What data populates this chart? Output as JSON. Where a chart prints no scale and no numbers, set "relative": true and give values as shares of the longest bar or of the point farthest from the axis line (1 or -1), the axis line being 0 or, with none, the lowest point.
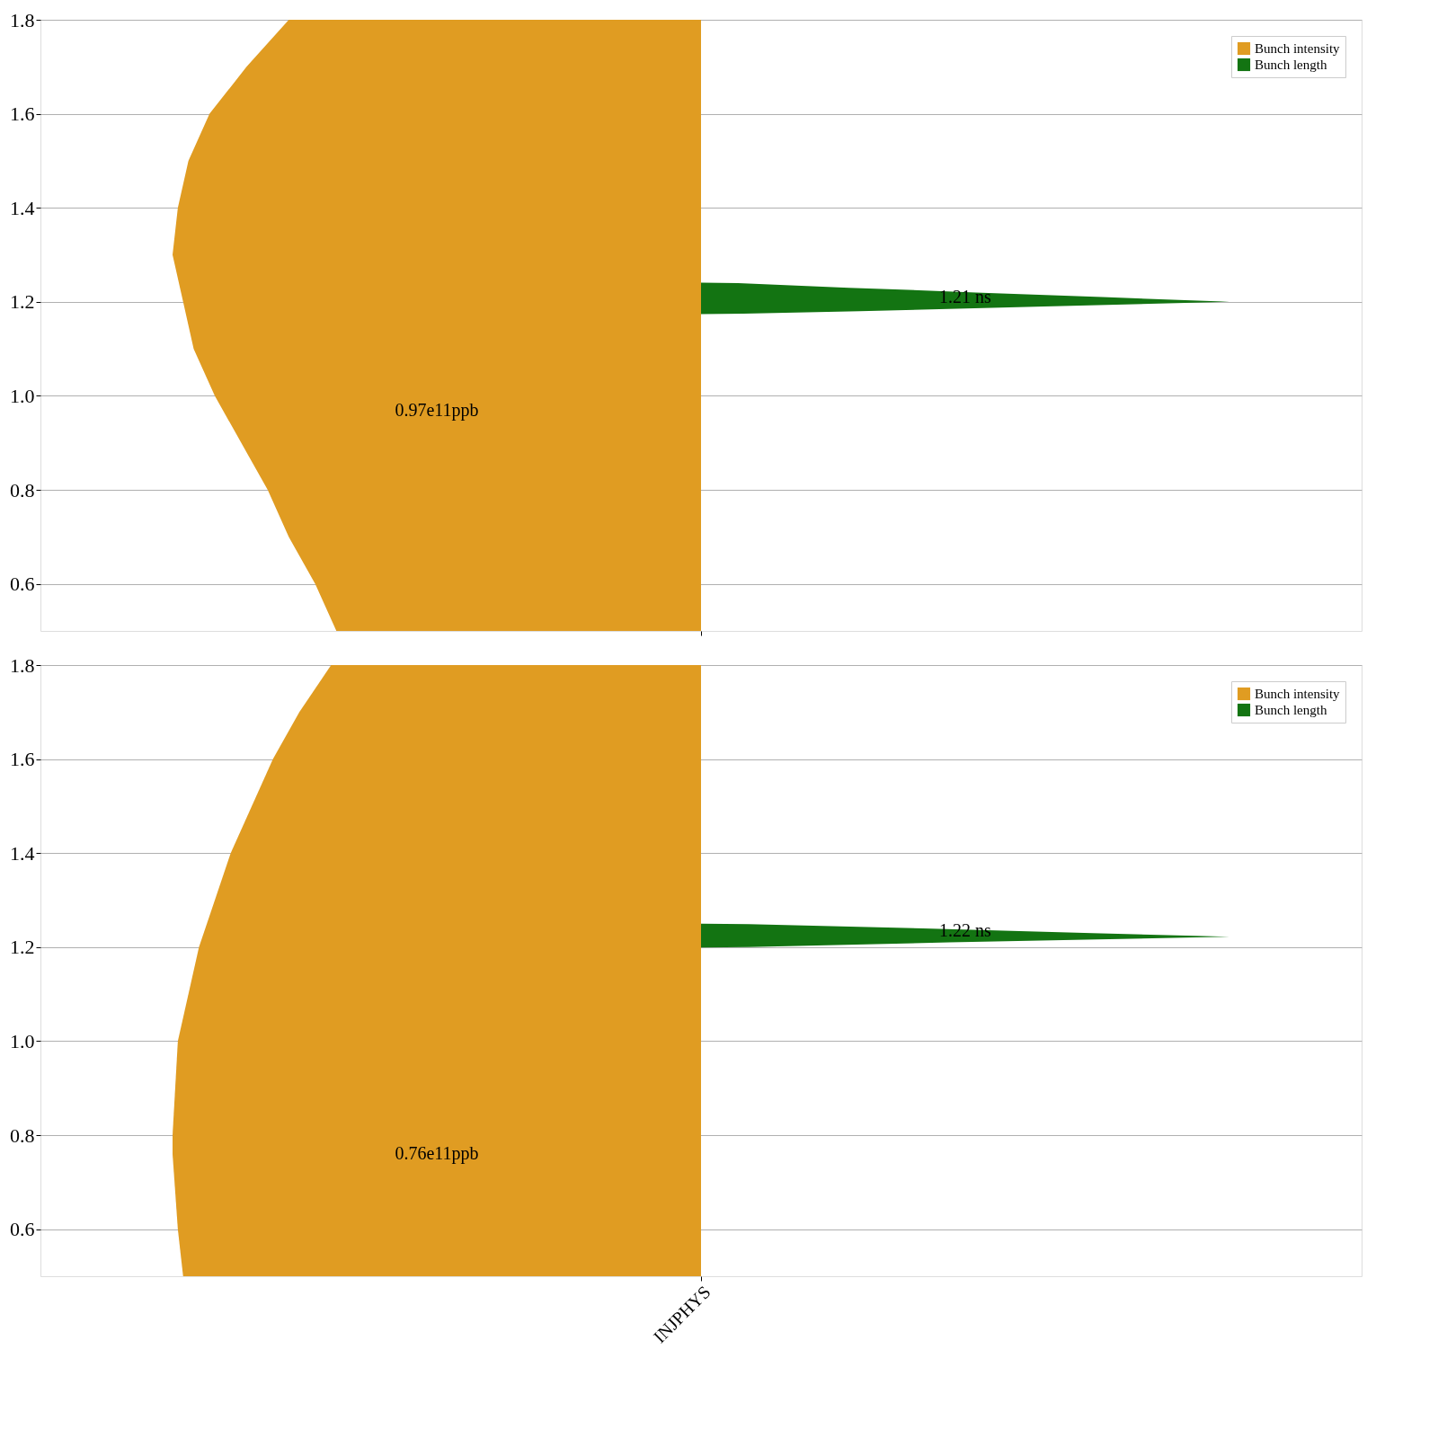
{
  "chart_data": [
    {
      "type": "area",
      "orientation": "horizontal",
      "relative": true,
      "tick_labels": "y",
      "ylim": [
        0.5,
        1.8
      ],
      "yticks": [
        0.6,
        0.8,
        {
          "value": 1.0,
          "label": "1.0"
        },
        1.2,
        1.4,
        1.6,
        1.8
      ],
      "grid": "y",
      "legend": "top right",
      "series": [
        {
          "name": "Bunch intensity",
          "color": "#e09c22",
          "x": [
            0.5,
            0.6,
            0.7,
            0.8,
            0.9,
            1.0,
            1.1,
            1.2,
            1.3,
            1.4,
            1.5,
            1.6,
            1.7,
            1.8
          ],
          "values": [
            -0.69,
            -0.73,
            -0.78,
            -0.82,
            -0.87,
            -0.92,
            -0.96,
            -0.98,
            -1.0,
            -0.99,
            -0.97,
            -0.93,
            -0.86,
            -0.78
          ]
        },
        {
          "name": "Bunch length",
          "color": "#137412",
          "x": [
            1.174,
            1.175,
            1.18,
            1.19,
            1.2,
            1.21,
            1.22,
            1.23,
            1.24,
            1.241
          ],
          "values": [
            0,
            0.08,
            0.3,
            0.65,
            1.0,
            0.76,
            0.52,
            0.28,
            0.07,
            0
          ]
        }
      ],
      "annotations": [
        "0.97e11ppb",
        "1.21 ns"
      ]
    },
    {
      "type": "area",
      "orientation": "horizontal",
      "relative": true,
      "xlabel": "INJPHYS",
      "tick_labels": "y",
      "ylim": [
        0.5,
        1.8
      ],
      "yticks": [
        0.6,
        0.8,
        {
          "value": 1.0,
          "label": "1.0"
        },
        1.2,
        1.4,
        1.6,
        1.8
      ],
      "grid": "y",
      "legend": "top right",
      "series": [
        {
          "name": "Bunch intensity",
          "color": "#e09c22",
          "x": [
            0.5,
            0.6,
            0.76,
            0.8,
            1.0,
            1.2,
            1.4,
            1.6,
            1.7,
            1.8
          ],
          "values": [
            -0.98,
            -0.99,
            -1.0,
            -1.0,
            -0.99,
            -0.95,
            -0.89,
            -0.81,
            -0.76,
            -0.7
          ]
        },
        {
          "name": "Bunch length",
          "color": "#137412",
          "x": [
            1.199,
            1.2,
            1.21,
            1.222,
            1.23,
            1.24,
            1.249,
            1.25
          ],
          "values": [
            0,
            0.09,
            0.47,
            1.0,
            0.74,
            0.42,
            0.09,
            0
          ]
        }
      ],
      "annotations": [
        "0.76e11ppb",
        "1.22 ns"
      ]
    }
  ]
}
